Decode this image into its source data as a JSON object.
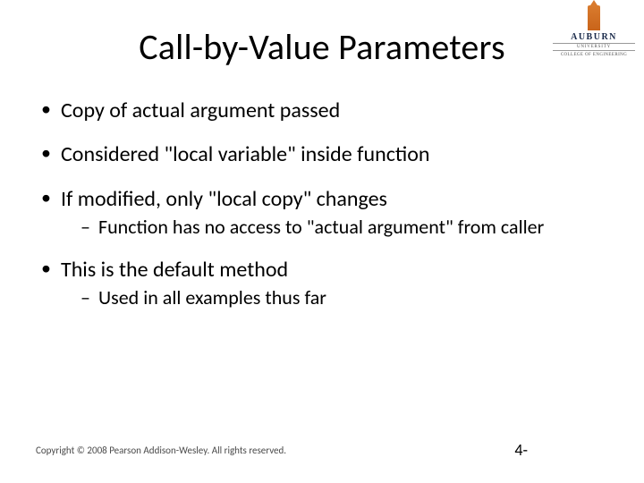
{
  "title": "Call-by-Value Parameters",
  "logo": {
    "university": "AUBURN",
    "subline": "UNIVERSITY",
    "college": "COLLEGE OF ENGINEERING"
  },
  "bullets": [
    {
      "text": "Copy of actual argument passed",
      "sub": []
    },
    {
      "text": "Considered \"local variable\" inside function",
      "sub": []
    },
    {
      "text": "If modified, only \"local copy\" changes",
      "sub": [
        "Function has no access to \"actual argument\" from caller"
      ]
    },
    {
      "text": "This is the default method",
      "sub": [
        "Used in all examples thus far"
      ]
    }
  ],
  "footer": "Copyright © 2008 Pearson Addison-Wesley. All rights reserved.",
  "pagenum": "4-",
  "style": {
    "background": "#ffffff",
    "title_fontsize": 40,
    "bullet_fontsize": 24,
    "sub_fontsize": 22,
    "footer_fontsize": 11,
    "text_color": "#000000",
    "logo_accent": "#d97b2e",
    "logo_text": "#1a2a4a"
  }
}
